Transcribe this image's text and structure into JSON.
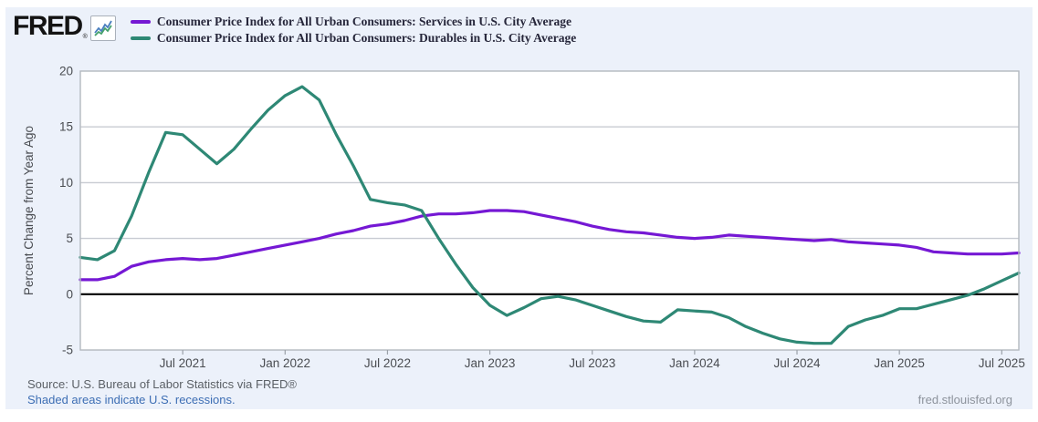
{
  "header": {
    "logo_text": "FRED",
    "logo_registered": "®",
    "legend": [
      {
        "label": "Consumer Price Index for All Urban Consumers: Services in U.S. City Average",
        "color": "#7518d4"
      },
      {
        "label": "Consumer Price Index for All Urban Consumers: Durables in U.S. City Average",
        "color": "#2e8875"
      }
    ]
  },
  "footer": {
    "source": "Source: U.S. Bureau of Labor Statistics via FRED®",
    "recession_note": "Shaded areas indicate U.S. recessions.",
    "site_url": "fred.stlouisfed.org"
  },
  "icons": {
    "fred_chart_icon": "line-chart-icon",
    "line1_color": "#4a7ebf",
    "line2_color": "#44a06b"
  },
  "chart_data": {
    "type": "line",
    "title": "",
    "xlabel": "",
    "ylabel": "Percent Change from Year Ago",
    "ylim": [
      -5,
      20
    ],
    "yticks": [
      20,
      15,
      10,
      5,
      0,
      -5
    ],
    "x_start": "Jan 2021",
    "x_end": "Aug 2025",
    "x_frequency": "monthly",
    "x_tick_labels": [
      "Jul 2021",
      "Jan 2022",
      "Jul 2022",
      "Jan 2023",
      "Jul 2023",
      "Jan 2024",
      "Jul 2024",
      "Jan 2025",
      "Jul 2025"
    ],
    "x_tick_indices": [
      6,
      12,
      18,
      24,
      30,
      36,
      42,
      48,
      54
    ],
    "grid": "horizontal",
    "zero_line": true,
    "legend_position": "top-header",
    "series": [
      {
        "name": "Consumer Price Index for All Urban Consumers: Services in U.S. City Average",
        "color": "#7518d4",
        "values": [
          1.3,
          1.3,
          1.6,
          2.5,
          2.9,
          3.1,
          3.2,
          3.1,
          3.2,
          3.5,
          3.8,
          4.1,
          4.4,
          4.7,
          5.0,
          5.4,
          5.7,
          6.1,
          6.3,
          6.6,
          7.0,
          7.2,
          7.2,
          7.3,
          7.5,
          7.5,
          7.4,
          7.1,
          6.8,
          6.5,
          6.1,
          5.8,
          5.6,
          5.5,
          5.3,
          5.1,
          5.0,
          5.1,
          5.3,
          5.2,
          5.1,
          5.0,
          4.9,
          4.8,
          4.9,
          4.7,
          4.6,
          4.5,
          4.4,
          4.2,
          3.8,
          3.7,
          3.6,
          3.6,
          3.6,
          3.7
        ]
      },
      {
        "name": "Consumer Price Index for All Urban Consumers: Durables in U.S. City Average",
        "color": "#2e8875",
        "values": [
          3.3,
          3.1,
          3.9,
          7.0,
          10.9,
          14.5,
          14.3,
          13.0,
          11.7,
          13.0,
          14.8,
          16.5,
          17.8,
          18.6,
          17.4,
          14.3,
          11.5,
          8.5,
          8.2,
          8.0,
          7.5,
          5.0,
          2.7,
          0.6,
          -1.0,
          -1.9,
          -1.2,
          -0.4,
          -0.2,
          -0.5,
          -1.0,
          -1.5,
          -2.0,
          -2.4,
          -2.5,
          -1.4,
          -1.5,
          -1.6,
          -2.1,
          -2.9,
          -3.5,
          -4.0,
          -4.3,
          -4.4,
          -4.4,
          -2.9,
          -2.3,
          -1.9,
          -1.3,
          -1.3,
          -0.9,
          -0.5,
          -0.1,
          0.5,
          1.2,
          1.9
        ]
      }
    ],
    "style": {
      "plot_bg": "#ffffff",
      "panel_bg": "#ecf1fa",
      "grid_color": "#c8cbd2",
      "border_color": "#b3b8bf",
      "zero_line_color": "#000000",
      "tick_color": "#9aa0a8",
      "tick_label_color": "#4a4d52",
      "axis_title_color": "#4a4d52"
    }
  }
}
